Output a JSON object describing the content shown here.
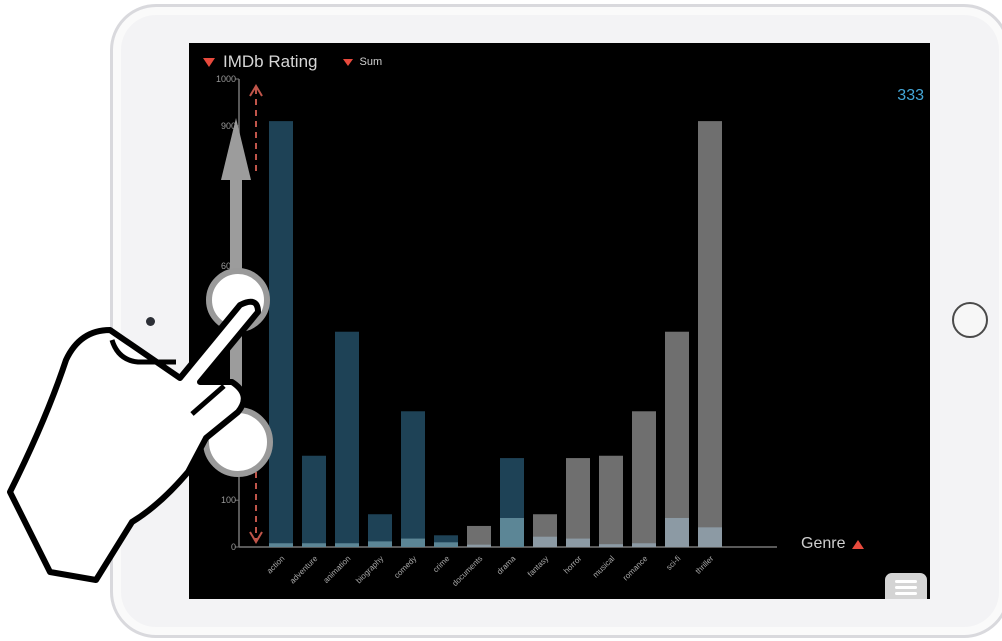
{
  "header": {
    "measure_label": "IMDb Rating",
    "aggregation_label": "Sum"
  },
  "value_readout": "333",
  "x_axis_sort_label": "Genre",
  "colors": {
    "selected_bar": "#1e4256",
    "unselected_bar": "#6f6f6f",
    "inner_bar_selected": "#5c8696",
    "inner_bar_unselected": "#8c9aa4",
    "sort_arrow": "#e84a3d",
    "readout": "#44a7d8",
    "range_arrow": "#c0554a"
  },
  "icons": {
    "measure_sort": "triangle-down-icon",
    "aggregation_sort": "triangle-down-icon",
    "genre_sort": "triangle-up-icon",
    "menu": "hamburger-menu-icon",
    "gesture": "hand-pointer-icon"
  },
  "chart_data": {
    "type": "bar",
    "categories": [
      "action",
      "adventure",
      "animation",
      "biography",
      "comedy",
      "crime",
      "documents",
      "drama",
      "fantasy",
      "horror",
      "musical",
      "romance",
      "sci-fi",
      "thriller"
    ],
    "series": [
      {
        "values": [
          910,
          195,
          460,
          70,
          290,
          25,
          45,
          190,
          70,
          190,
          195,
          290,
          460,
          910
        ]
      },
      {
        "values": [
          8,
          8,
          8,
          12,
          18,
          10,
          5,
          62,
          22,
          18,
          6,
          8,
          62,
          42
        ]
      }
    ],
    "selected": [
      true,
      true,
      true,
      true,
      true,
      true,
      false,
      true,
      false,
      false,
      false,
      false,
      false,
      false
    ],
    "yticks": [
      "1000",
      "900",
      "",
      "",
      "600",
      "",
      "",
      "",
      "",
      "100",
      "0"
    ],
    "ylim": [
      0,
      1000
    ],
    "xlabel": "",
    "ylabel": "",
    "grid": false
  }
}
